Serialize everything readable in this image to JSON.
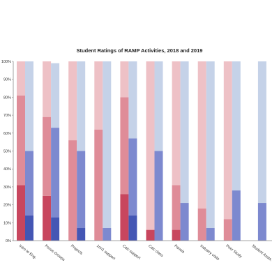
{
  "chart_data": {
    "type": "bar",
    "title": "Student Ratings of RAMP Activities, 2018  and 2019",
    "categories": [
      "Intro to Eng.",
      "Focus Groups",
      "Projects",
      "1on1 support",
      "Calc support",
      "Calc class",
      "Panels",
      "Industry visits",
      "Peer Study",
      "Student Assts."
    ],
    "y_ticks": [
      "0%",
      "10%",
      "20%",
      "30%",
      "40%",
      "50%",
      "60%",
      "70%",
      "80%",
      "90%",
      "100%"
    ],
    "ylim": [
      0,
      100
    ],
    "grid": false,
    "stack_order_bottom_to_top": [
      "dark",
      "medium",
      "light"
    ],
    "series": [
      {
        "year_group": "2018",
        "colors": [
          "#c8465e",
          "#df8c98",
          "#eec1c6"
        ],
        "values": [
          [
            31,
            50,
            19
          ],
          [
            25,
            44,
            31
          ],
          [
            0,
            56,
            44
          ],
          [
            0,
            62,
            38
          ],
          [
            26,
            54,
            20
          ],
          [
            6,
            0,
            94
          ],
          [
            6,
            25,
            69
          ],
          [
            0,
            18,
            82
          ],
          [
            0,
            12,
            88
          ],
          [
            0,
            0,
            0
          ]
        ]
      },
      {
        "year_group": "2019",
        "colors": [
          "#4456b4",
          "#7d89cf",
          "#c5d2e8"
        ],
        "values": [
          [
            14,
            36,
            50
          ],
          [
            13,
            50,
            36
          ],
          [
            7,
            43,
            50
          ],
          [
            0,
            7,
            93
          ],
          [
            14,
            43,
            43
          ],
          [
            0,
            50,
            50
          ],
          [
            0,
            21,
            79
          ],
          [
            0,
            7,
            93
          ],
          [
            0,
            28,
            72
          ],
          [
            0,
            21,
            79
          ]
        ]
      }
    ]
  }
}
